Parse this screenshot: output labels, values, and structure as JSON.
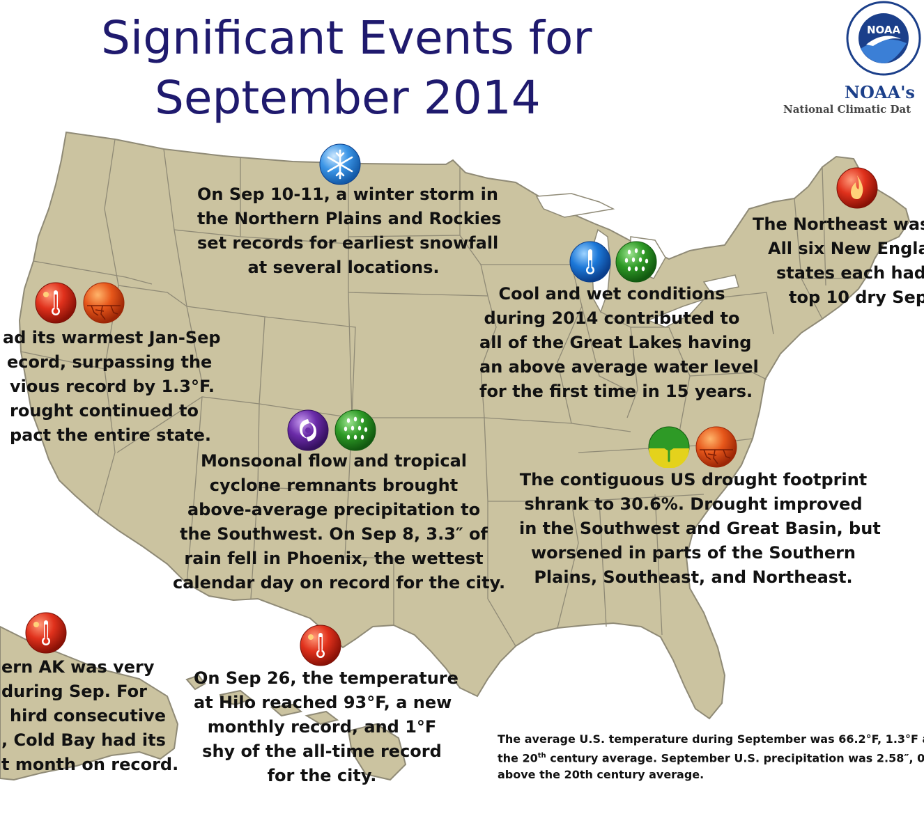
{
  "title": {
    "line1": "Significant Events for",
    "line2": "September 2014"
  },
  "logo": {
    "agency": "NOAA's",
    "center": "National Climatic Dat",
    "seal_text": "NOAA"
  },
  "colors": {
    "land": "#cbc3a0",
    "border": "#8f8a76",
    "title": "#1f1a6e",
    "heat": "#e0311c",
    "cold": "#1c78d8",
    "wet": "#2e9a26",
    "drought": "#e6561a",
    "tropical": "#6a2ba8",
    "improve": "#d6c21c"
  },
  "events": [
    {
      "id": "winter-storm",
      "icons": [
        "snowflake"
      ],
      "lines": [
        "On Sep 10-11, a winter storm in",
        "the Northern Plains and Rockies",
        "set records for earliest snowfall",
        "at several locations."
      ]
    },
    {
      "id": "northeast-dry",
      "icons": [
        "fire"
      ],
      "lines": [
        "The Northeast was",
        "All six New Engla",
        "states each had",
        "top 10 dry Sep."
      ]
    },
    {
      "id": "great-lakes",
      "icons": [
        "thermometer-cold",
        "rain"
      ],
      "lines": [
        "Cool and wet conditions",
        "during 2014 contributed to",
        "all of the Great Lakes having",
        "an above average water level",
        "for the first time in 15 years."
      ]
    },
    {
      "id": "california",
      "icons": [
        "thermometer-hot",
        "drought"
      ],
      "lines": [
        "ad its warmest Jan-Sep",
        "ecord, surpassing the",
        "vious record by 1.3°F.",
        "rought continued to",
        "pact the entire state."
      ]
    },
    {
      "id": "southwest",
      "icons": [
        "hurricane",
        "rain"
      ],
      "lines": [
        "Monsoonal flow and tropical",
        "cyclone remnants brought",
        "above-average precipitation to",
        "the Southwest. On Sep 8, 3.3″ of",
        "rain fell in Phoenix, the wettest",
        "calendar day on record for the city."
      ]
    },
    {
      "id": "drought",
      "icons": [
        "drought-improve",
        "drought"
      ],
      "lines": [
        "The contiguous US drought footprint",
        "shrank to 30.6%. Drought improved",
        "in the Southwest and Great Basin, but",
        "worsened in parts of the Southern",
        "Plains, Southeast, and Northeast."
      ]
    },
    {
      "id": "alaska",
      "icons": [
        "thermometer-hot"
      ],
      "lines": [
        "ern AK was very",
        "during Sep. For",
        "hird consecutive",
        ", Cold Bay had its",
        "t month on record."
      ]
    },
    {
      "id": "hawaii",
      "icons": [
        "thermometer-hot"
      ],
      "lines": [
        "On Sep 26, the temperature",
        "at Hilo reached 93°F, a new",
        "monthly record, and 1°F",
        "shy of the all-time record",
        "for the city."
      ]
    }
  ],
  "summary": {
    "line1": "The average U.S. temperature during September was 66.2°F, 1.3°F a",
    "line2_prefix": "the 20",
    "line2_sup": "th",
    "line2_suffix": " century average. September U.S. precipitation was 2.58″, 0.",
    "line3": "above the 20th century average."
  }
}
